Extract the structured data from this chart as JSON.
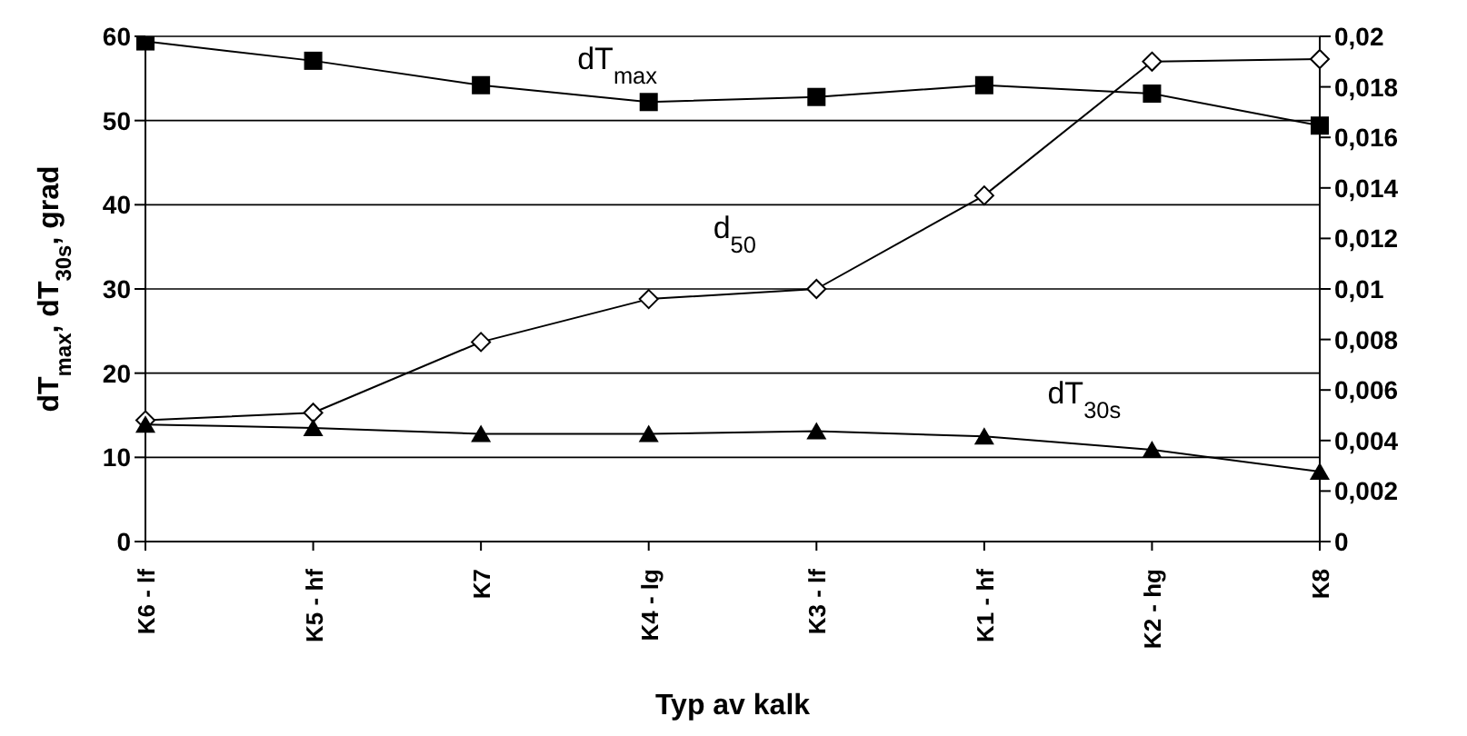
{
  "chart_data": {
    "type": "line",
    "xlabel": "Typ av kalk",
    "ylabel": "dT$_{max}$, dT$_{30s}$, grad",
    "categories": [
      "K6 - lf",
      "K5 - hf",
      "K7",
      "K4 - lg",
      "K3 - lf",
      "K1 - hf",
      "K2 - hg",
      "K8"
    ],
    "series": [
      {
        "name": "dT$_{max}$",
        "color": "#000000",
        "marker": "square",
        "values": [
          59.4,
          57.1,
          54.2,
          52.2,
          52.8,
          54.2,
          53.2,
          49.4
        ]
      },
      {
        "name": "d$_{50}$",
        "color": "#000000",
        "marker": "diamond",
        "axis": "y2",
        "values": [
          0.0048,
          0.0051,
          0.0079,
          0.0096,
          0.01,
          0.0137,
          0.019,
          0.0191
        ]
      },
      {
        "name": "dT$_{30s}$",
        "color": "#000000",
        "marker": "triangle",
        "values": [
          13.9,
          13.5,
          12.8,
          12.8,
          13.1,
          12.5,
          10.9,
          8.3
        ]
      }
    ],
    "ylim": [
      0,
      60
    ],
    "yticks": [
      0,
      10,
      20,
      30,
      40,
      50,
      60
    ],
    "y2lim": [
      0,
      0.02
    ],
    "y2ticks": [
      {
        "value": 0,
        "label": "0"
      },
      {
        "value": 0.002,
        "label": "0,002"
      },
      {
        "value": 0.004,
        "label": "0,004"
      },
      {
        "value": 0.006,
        "label": "0,006"
      },
      {
        "value": 0.008,
        "label": "0,008"
      },
      {
        "value": 0.01,
        "label": "0,01"
      },
      {
        "value": 0.012,
        "label": "0,012"
      },
      {
        "value": 0.014,
        "label": "0,014"
      },
      {
        "value": 0.016,
        "label": "0,016"
      },
      {
        "value": 0.018,
        "label": "0,018"
      },
      {
        "value": 0.02,
        "label": "0,02"
      }
    ],
    "grid": "y",
    "legend": false,
    "line_style": "solid"
  }
}
